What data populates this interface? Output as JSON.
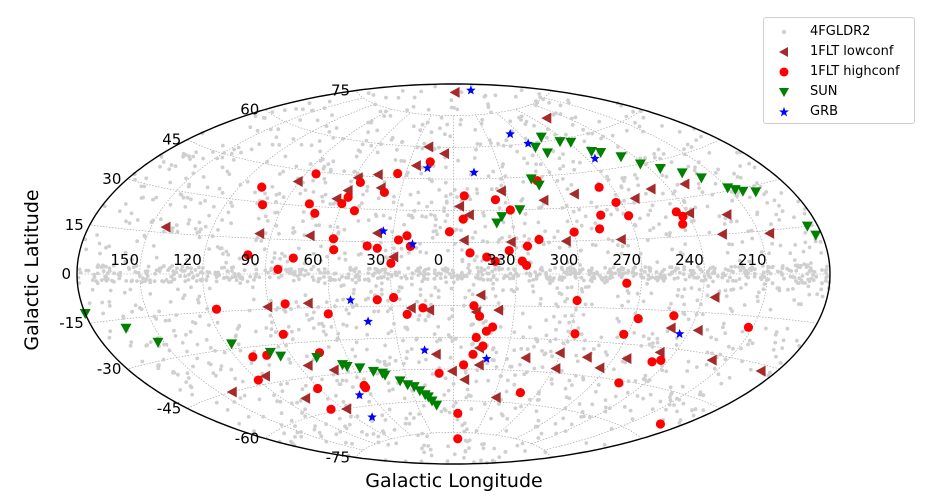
{
  "chart_data": {
    "type": "scatter",
    "projection": "aitoff",
    "xlabel": "Galactic Longitude",
    "ylabel": "Galactic Latitude",
    "x_tick_labels": [
      "150",
      "120",
      "90",
      "60",
      "30",
      "0",
      "330",
      "300",
      "270",
      "240",
      "210"
    ],
    "x_ticks_deg": [
      150,
      120,
      90,
      60,
      30,
      0,
      -30,
      -60,
      -90,
      -120,
      -150
    ],
    "y_tick_labels": [
      "75",
      "60",
      "45",
      "30",
      "15",
      "0",
      "-15",
      "-30",
      "-45",
      "-60",
      "-75"
    ],
    "y_ticks_deg": [
      75,
      60,
      45,
      30,
      15,
      0,
      -15,
      -30,
      -45,
      -60,
      -75
    ],
    "grid": true,
    "legend_position": "top-right",
    "series": [
      {
        "name": "4FGLDR2",
        "marker": "dot",
        "color": "#cfcfcf",
        "points": [
          [
            0,
            0.5
          ],
          [
            8,
            -0.6
          ],
          [
            -12,
            1.2
          ],
          [
            25,
            -1.8
          ],
          [
            -30,
            0.2
          ],
          [
            40,
            2.5
          ],
          [
            -45,
            -2.2
          ],
          [
            60,
            0.8
          ],
          [
            -70,
            -0.9
          ],
          [
            90,
            1.6
          ],
          [
            -95,
            -1.4
          ],
          [
            120,
            0.4
          ],
          [
            -125,
            2.1
          ],
          [
            150,
            -0.7
          ],
          [
            -155,
            0.9
          ],
          [
            15,
            -3.5
          ],
          [
            -20,
            3.8
          ],
          [
            35,
            5.2
          ],
          [
            -38,
            -5.6
          ],
          [
            55,
            7.1
          ],
          [
            -62,
            -8.0
          ],
          [
            75,
            11.3
          ],
          [
            -80,
            12.6
          ],
          [
            100,
            -15.2
          ],
          [
            -105,
            16.4
          ],
          [
            130,
            -18.3
          ],
          [
            -135,
            21.7
          ],
          [
            160,
            -24.5
          ],
          [
            -165,
            26.8
          ],
          [
            5,
            31.2
          ],
          [
            -10,
            -33.4
          ],
          [
            20,
            38.5
          ],
          [
            -28,
            41.6
          ],
          [
            48,
            -44.7
          ],
          [
            -52,
            47.3
          ],
          [
            68,
            -51.2
          ],
          [
            -73,
            55.4
          ],
          [
            85,
            -58.6
          ],
          [
            -88,
            62.1
          ],
          [
            110,
            -66.3
          ],
          [
            -115,
            69.4
          ],
          [
            140,
            -72.2
          ],
          [
            -145,
            74.8
          ],
          [
            12,
            -18.6
          ],
          [
            -16,
            22.4
          ],
          [
            32,
            -26.7
          ],
          [
            -36,
            9.5
          ],
          [
            44,
            14.8
          ],
          [
            -50,
            -19.6
          ],
          [
            66,
            -23.4
          ],
          [
            -66,
            28.9
          ],
          [
            82,
            -36.1
          ],
          [
            -84,
            39.7
          ],
          [
            104,
            43.2
          ],
          [
            -108,
            -46.5
          ],
          [
            126,
            52.6
          ],
          [
            -128,
            -54.1
          ],
          [
            144,
            57.3
          ],
          [
            -148,
            -61.8
          ],
          [
            170,
            -9.1
          ],
          [
            -172,
            8.4
          ],
          [
            3,
            65.2
          ],
          [
            -4,
            -68.9
          ],
          [
            18,
            12.3
          ],
          [
            -22,
            -13.7
          ],
          [
            38,
            -9.8
          ],
          [
            -42,
            17.5
          ],
          [
            58,
            -14.6
          ],
          [
            -58,
            23.9
          ],
          [
            78,
            27.3
          ],
          [
            -78,
            -31.5
          ],
          [
            96,
            34.2
          ],
          [
            -98,
            -37.6
          ],
          [
            116,
            24.7
          ],
          [
            -118,
            -28.4
          ],
          [
            136,
            32.9
          ],
          [
            -138,
            -35.3
          ],
          [
            156,
            41.8
          ],
          [
            -158,
            -43.6
          ],
          [
            176,
            30.4
          ],
          [
            -176,
            -32.7
          ]
        ]
      },
      {
        "name": "1FLT lowconf",
        "marker": "triangle-left",
        "color": "#a52a2a",
        "points": [
          [
            -5,
            86
          ],
          [
            -103,
            69
          ],
          [
            20,
            60
          ],
          [
            7,
            57
          ],
          [
            25,
            51
          ],
          [
            47,
            46
          ],
          [
            58,
            44
          ],
          [
            42,
            40
          ],
          [
            60,
            38
          ],
          [
            64,
            34
          ],
          [
            91,
            40
          ],
          [
            -3,
            32
          ],
          [
            -8,
            28
          ],
          [
            -27,
            39
          ],
          [
            -49,
            34
          ],
          [
            -67,
            36
          ],
          [
            -98,
            32
          ],
          [
            -110,
            35
          ],
          [
            -130,
            35
          ],
          [
            -121,
            24
          ],
          [
            -139,
            22
          ],
          [
            -155,
            14
          ],
          [
            -132,
            15
          ],
          [
            -82,
            15
          ],
          [
            -55,
            15
          ],
          [
            -28,
            15
          ],
          [
            -5,
            16
          ],
          [
            38,
            19
          ],
          [
            71,
            17
          ],
          [
            96,
            17
          ],
          [
            143,
            17
          ],
          [
            29,
            8
          ],
          [
            -13,
            -10
          ],
          [
            -22,
            -17
          ],
          [
            -11,
            -18
          ],
          [
            21,
            -16
          ],
          [
            12,
            -17
          ],
          [
            71,
            -13
          ],
          [
            91,
            -14
          ],
          [
            -126,
            -9
          ],
          [
            -110,
            -22
          ],
          [
            -124,
            -22
          ],
          [
            -142,
            -32
          ],
          [
            -112,
            -32
          ],
          [
            -97,
            -36
          ],
          [
            -75,
            -37
          ],
          [
            -59,
            -36
          ],
          [
            -86,
            -41
          ],
          [
            -61,
            -43
          ],
          [
            -41,
            -39
          ],
          [
            -15,
            -43
          ],
          [
            -14,
            -35
          ],
          [
            85,
            -40
          ],
          [
            72,
            -43
          ],
          [
            114,
            -42
          ],
          [
            143,
            -45
          ],
          [
            -172,
            -32
          ],
          [
            10,
            -38
          ],
          [
            1,
            -46
          ],
          [
            -7,
            -50
          ],
          [
            -32,
            -58
          ],
          [
            88,
            -60
          ],
          [
            106,
            -53
          ]
        ]
      },
      {
        "name": "1FLT highconf",
        "marker": "circle",
        "color": "#ff0000",
        "points": [
          [
            16,
            53
          ],
          [
            35,
            47
          ],
          [
            55,
            42
          ],
          [
            84,
            44
          ],
          [
            39,
            38
          ],
          [
            58,
            35
          ],
          [
            60,
            32
          ],
          [
            108,
            36
          ],
          [
            101,
            29
          ],
          [
            77,
            31
          ],
          [
            72,
            27
          ],
          [
            52,
            29
          ],
          [
            -6,
            37
          ],
          [
            -23,
            35
          ],
          [
            -30,
            30
          ],
          [
            -50,
            43
          ],
          [
            -83,
            38
          ],
          [
            -87,
            31
          ],
          [
            -90,
            25
          ],
          [
            -115,
            25
          ],
          [
            -117,
            23
          ],
          [
            -115,
            20
          ],
          [
            -76,
            26
          ],
          [
            -73,
            20
          ],
          [
            -60,
            19
          ],
          [
            -42,
            16
          ],
          [
            -36,
            13
          ],
          [
            -16,
            8
          ],
          [
            -5,
            26
          ],
          [
            2,
            20
          ],
          [
            23,
            18
          ],
          [
            27,
            16
          ],
          [
            21,
            13
          ],
          [
            37,
            12
          ],
          [
            30,
            5
          ],
          [
            42,
            13
          ],
          [
            59,
            16
          ],
          [
            58,
            11
          ],
          [
            77,
            7
          ],
          [
            84,
            2
          ],
          [
            99,
            8
          ],
          [
            -8,
            10
          ],
          [
            -20,
            6
          ],
          [
            -27,
            11
          ],
          [
            -33,
            6
          ],
          [
            -35,
            4
          ],
          [
            -83,
            -4
          ],
          [
            -10,
            -15
          ],
          [
            -13,
            -20
          ],
          [
            -17,
            -27
          ],
          [
            -20,
            -25
          ],
          [
            -12,
            -30
          ],
          [
            -16,
            -34
          ],
          [
            -11,
            -38
          ],
          [
            15,
            -16
          ],
          [
            23,
            -19
          ],
          [
            29,
            -11
          ],
          [
            37,
            -12
          ],
          [
            9,
            -47
          ],
          [
            -6,
            -43
          ],
          [
            -4,
            -66
          ],
          [
            -7,
            -78
          ],
          [
            -48,
            -55
          ],
          [
            -63,
            -27
          ],
          [
            -88,
            -26
          ],
          [
            -92,
            -19
          ],
          [
            -109,
            -17
          ],
          [
            -112,
            -36
          ],
          [
            -105,
            -46
          ],
          [
            -116,
            -35
          ],
          [
            -148,
            -19
          ],
          [
            -168,
            -55
          ],
          [
            -60,
            -12
          ],
          [
            62,
            -18
          ],
          [
            82,
            -13
          ],
          [
            88,
            -26
          ],
          [
            74,
            -35
          ],
          [
            116,
            -14
          ],
          [
            111,
            -34
          ],
          [
            103,
            -34
          ],
          [
            120,
            -43
          ],
          [
            91,
            -50
          ],
          [
            99,
            -59
          ],
          [
            60,
            -52
          ],
          [
            60,
            -51
          ]
        ]
      },
      {
        "name": "SUN",
        "marker": "triangle-down",
        "color": "#008000",
        "points": [
          [
            -47,
            44
          ],
          [
            -63,
            58
          ],
          [
            -75,
            62
          ],
          [
            -92,
            58
          ],
          [
            -98,
            53
          ],
          [
            -103,
            52
          ],
          [
            -112,
            49
          ],
          [
            -118,
            45
          ],
          [
            -126,
            42
          ],
          [
            -135,
            39
          ],
          [
            -142,
            36
          ],
          [
            -150,
            31
          ],
          [
            -153,
            30
          ],
          [
            -156,
            29
          ],
          [
            -162,
            28
          ],
          [
            -175,
            15
          ],
          [
            -177,
            12
          ],
          [
            -35,
            30
          ],
          [
            -25,
            27
          ],
          [
            -22,
            24
          ],
          [
            -50,
            41
          ],
          [
            -68,
            55
          ],
          [
            -85,
            59
          ],
          [
            180,
            -12
          ],
          [
            164,
            -18
          ],
          [
            153,
            -24
          ],
          [
            117,
            -28
          ],
          [
            100,
            -33
          ],
          [
            96,
            -35
          ],
          [
            77,
            -37
          ],
          [
            65,
            -41
          ],
          [
            63,
            -42
          ],
          [
            56,
            -43
          ],
          [
            49,
            -45
          ],
          [
            44,
            -46
          ],
          [
            43,
            -47
          ],
          [
            35,
            -50
          ],
          [
            31,
            -52
          ],
          [
            27,
            -53
          ],
          [
            24,
            -55
          ],
          [
            21,
            -57
          ],
          [
            19,
            -58
          ],
          [
            17,
            -60
          ],
          [
            14,
            -62
          ]
        ]
      },
      {
        "name": "GRB",
        "marker": "star",
        "color": "#0000ff",
        "points": [
          [
            -86,
            86
          ],
          [
            -52,
            65
          ],
          [
            -60,
            60
          ],
          [
            -95,
            50
          ],
          [
            -13,
            48
          ],
          [
            17,
            50
          ],
          [
            35,
            20
          ],
          [
            20,
            14
          ],
          [
            50,
            -12
          ],
          [
            43,
            -22
          ],
          [
            16,
            -36
          ],
          [
            -19,
            -40
          ],
          [
            68,
            -55
          ],
          [
            76,
            -65
          ],
          [
            -116,
            -24
          ]
        ]
      }
    ]
  }
}
